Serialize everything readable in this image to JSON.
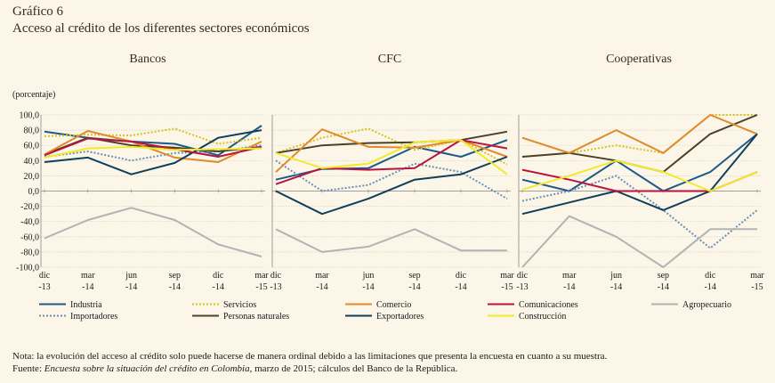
{
  "header": {
    "figure_number": "Gráfico 6",
    "title": "Acceso al crédito de los diferentes sectores económicos"
  },
  "footnote": {
    "nota": "Nota: la evolución del acceso al crédito solo puede hacerse de manera ordinal debido a las limitaciones que presenta la encuesta en cuanto a su muestra.",
    "fuente_prefix": "Fuente: ",
    "fuente_source": "Encuesta sobre la situación del crédito en Colombia",
    "fuente_rest": ", marzo de 2015; cálculos del Banco de la República."
  },
  "colors": {
    "background": "#fbf6e7",
    "gridline": "#cfc9b8",
    "axis": "#888888"
  },
  "chart_data": [
    {
      "type": "line",
      "title": "Bancos",
      "ylabel": "(porcentaje)",
      "ylim": [
        -100,
        100
      ],
      "yticks": [
        "100,0",
        "80,0",
        "60,0",
        "40,0",
        "20,0",
        "0,0",
        "-20,0",
        "-40,0",
        "-60,0",
        "-80,0",
        "-100,0"
      ],
      "categories": [
        "dic -13",
        "mar -14",
        "jun -14",
        "sep -14",
        "dic -14",
        "mar -15"
      ],
      "x_labels": [
        [
          "dic",
          "-13"
        ],
        [
          "mar",
          "-14"
        ],
        [
          "jun",
          "-14"
        ],
        [
          "sep",
          "-14"
        ],
        [
          "dic",
          "-14"
        ],
        [
          "mar",
          "-15"
        ]
      ],
      "series": [
        {
          "name": "Industria",
          "values": [
            78,
            70,
            65,
            62,
            47,
            86
          ]
        },
        {
          "name": "Importadores",
          "values": [
            45,
            52,
            40,
            50,
            52,
            60
          ]
        },
        {
          "name": "Servicios",
          "values": [
            72,
            74,
            73,
            82,
            62,
            70
          ]
        },
        {
          "name": "Personas naturales",
          "values": [
            48,
            70,
            60,
            57,
            52,
            58
          ]
        },
        {
          "name": "Comercio",
          "values": [
            48,
            79,
            65,
            44,
            38,
            65
          ]
        },
        {
          "name": "Exportadores",
          "values": [
            38,
            44,
            22,
            37,
            70,
            80
          ]
        },
        {
          "name": "Comunicaciones",
          "values": [
            47,
            69,
            65,
            55,
            45,
            58
          ]
        },
        {
          "name": "Construcción",
          "values": [
            44,
            56,
            58,
            54,
            55,
            56
          ]
        },
        {
          "name": "Agropecuario",
          "values": [
            -62,
            -38,
            -22,
            -38,
            -70,
            -86
          ]
        }
      ]
    },
    {
      "type": "line",
      "title": "CFC",
      "ylim": [
        -100,
        100
      ],
      "categories": [
        "dic -13",
        "mar -14",
        "jun -14",
        "sep -14",
        "dic -14",
        "mar -15"
      ],
      "x_labels": [
        [
          "dic",
          "-13"
        ],
        [
          "mar",
          "-14"
        ],
        [
          "jun",
          "-14"
        ],
        [
          "sep",
          "-14"
        ],
        [
          "dic",
          "-14"
        ],
        [
          "mar",
          "-15"
        ]
      ],
      "series": [
        {
          "name": "Industria",
          "values": [
            15,
            29,
            30,
            58,
            45,
            67
          ]
        },
        {
          "name": "Importadores",
          "values": [
            40,
            0,
            8,
            36,
            25,
            -10
          ]
        },
        {
          "name": "Servicios",
          "values": [
            50,
            70,
            82,
            54,
            67,
            35
          ]
        },
        {
          "name": "Personas naturales",
          "values": [
            50,
            60,
            63,
            64,
            67,
            78
          ]
        },
        {
          "name": "Comercio",
          "values": [
            25,
            81,
            58,
            57,
            67,
            45
          ]
        },
        {
          "name": "Exportadores",
          "values": [
            0,
            -30,
            -10,
            15,
            22,
            45
          ]
        },
        {
          "name": "Comunicaciones",
          "values": [
            9,
            30,
            28,
            30,
            67,
            56
          ]
        },
        {
          "name": "Construcción",
          "values": [
            50,
            30,
            36,
            64,
            67,
            22
          ]
        },
        {
          "name": "Agropecuario",
          "values": [
            -50,
            -80,
            -73,
            -50,
            -78,
            -78
          ]
        }
      ]
    },
    {
      "type": "line",
      "title": "Cooperativas",
      "ylim": [
        -100,
        100
      ],
      "categories": [
        "dic -13",
        "mar -14",
        "jun -14",
        "sep -14",
        "dic -14",
        "mar -15"
      ],
      "x_labels": [
        [
          "dic",
          "-13"
        ],
        [
          "mar",
          "-14"
        ],
        [
          "jun",
          "-14"
        ],
        [
          "sep",
          "-14"
        ],
        [
          "dic",
          "-14"
        ],
        [
          "mar",
          "-15"
        ]
      ],
      "series": [
        {
          "name": "Industria",
          "values": [
            15,
            0,
            40,
            0,
            25,
            75
          ]
        },
        {
          "name": "Importadores",
          "values": [
            -13,
            0,
            20,
            -25,
            -75,
            -25
          ]
        },
        {
          "name": "Servicios",
          "values": [
            70,
            50,
            60,
            50,
            100,
            100
          ]
        },
        {
          "name": "Personas naturales",
          "values": [
            45,
            50,
            40,
            25,
            75,
            100
          ]
        },
        {
          "name": "Comercio",
          "values": [
            70,
            50,
            80,
            50,
            100,
            75
          ]
        },
        {
          "name": "Exportadores",
          "values": [
            -30,
            -15,
            0,
            -25,
            0,
            75
          ]
        },
        {
          "name": "Comunicaciones",
          "values": [
            28,
            15,
            0,
            0,
            0,
            25
          ]
        },
        {
          "name": "Construcción",
          "values": [
            2,
            20,
            40,
            25,
            0,
            25
          ]
        },
        {
          "name": "Agropecuario",
          "values": [
            -100,
            -33,
            -60,
            -100,
            -50,
            -50
          ]
        }
      ]
    }
  ],
  "legend": [
    {
      "name": "Industria",
      "color": "#1d5a8a",
      "dash": "solid"
    },
    {
      "name": "Importadores",
      "color": "#6c8fb8",
      "dash": "dotted"
    },
    {
      "name": "Servicios",
      "color": "#d6c31e",
      "dash": "dotted"
    },
    {
      "name": "Personas naturales",
      "color": "#4a4128",
      "dash": "solid"
    },
    {
      "name": "Comercio",
      "color": "#e08a2c",
      "dash": "solid"
    },
    {
      "name": "Exportadores",
      "color": "#0f3f5c",
      "dash": "solid"
    },
    {
      "name": "Comunicaciones",
      "color": "#b8153e",
      "dash": "solid"
    },
    {
      "name": "Construcción",
      "color": "#f2ea2a",
      "dash": "solid"
    },
    {
      "name": "Agropecuario",
      "color": "#b3b3b3",
      "dash": "solid"
    }
  ]
}
